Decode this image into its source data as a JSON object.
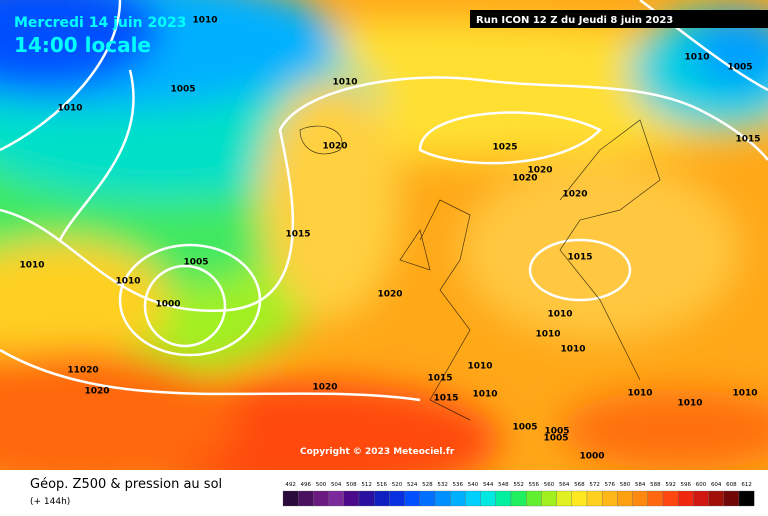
{
  "header": {
    "date": "Mercredi 14 juin 2023",
    "time": "14:00 locale",
    "run": "Run ICON 12 Z du Jeudi 8 juin 2023",
    "copyright": "Copyright © 2023 Meteociel.fr"
  },
  "footer": {
    "title": "Géop. Z500 & pression au sol",
    "subtitle": "(+ 144h)"
  },
  "isobar_labels": [
    "1010",
    "1005",
    "1010",
    "1005",
    "1010",
    "1010",
    "1020",
    "1025",
    "1015",
    "1020",
    "1020",
    "1020",
    "1015",
    "1005",
    "1010",
    "1010",
    "1015",
    "1000",
    "1020",
    "1010",
    "1010",
    "1010",
    "11020",
    "1020",
    "1010",
    "1015",
    "1015",
    "1010",
    "1020",
    "1010",
    "1010",
    "1010",
    "1005",
    "1005",
    "1005",
    "1000"
  ],
  "legend": [
    {
      "value": 492,
      "color": "#2a0a3a"
    },
    {
      "value": 496,
      "color": "#4a1060"
    },
    {
      "value": 500,
      "color": "#6a1a80"
    },
    {
      "value": 504,
      "color": "#7a2a9a"
    },
    {
      "value": 508,
      "color": "#4a0a8a"
    },
    {
      "value": 512,
      "color": "#2a10a0"
    },
    {
      "value": 516,
      "color": "#1020c0"
    },
    {
      "value": 520,
      "color": "#0830e0"
    },
    {
      "value": 524,
      "color": "#0050ff"
    },
    {
      "value": 528,
      "color": "#0070ff"
    },
    {
      "value": 532,
      "color": "#0090ff"
    },
    {
      "value": 536,
      "color": "#00b0ff"
    },
    {
      "value": 540,
      "color": "#00d0ff"
    },
    {
      "value": 544,
      "color": "#00e8e0"
    },
    {
      "value": 548,
      "color": "#00f0a0"
    },
    {
      "value": 552,
      "color": "#20f060"
    },
    {
      "value": 556,
      "color": "#60f030"
    },
    {
      "value": 560,
      "color": "#a0f020"
    },
    {
      "value": 564,
      "color": "#e0f020"
    },
    {
      "value": 568,
      "color": "#ffe820"
    },
    {
      "value": 572,
      "color": "#ffd020"
    },
    {
      "value": 576,
      "color": "#ffb818"
    },
    {
      "value": 580,
      "color": "#ffa010"
    },
    {
      "value": 584,
      "color": "#ff8810"
    },
    {
      "value": 588,
      "color": "#ff6810"
    },
    {
      "value": 592,
      "color": "#ff4810"
    },
    {
      "value": 596,
      "color": "#f02810"
    },
    {
      "value": 600,
      "color": "#d01810"
    },
    {
      "value": 604,
      "color": "#a01008"
    },
    {
      "value": 608,
      "color": "#700808"
    },
    {
      "value": 612,
      "color": "#000000"
    }
  ]
}
